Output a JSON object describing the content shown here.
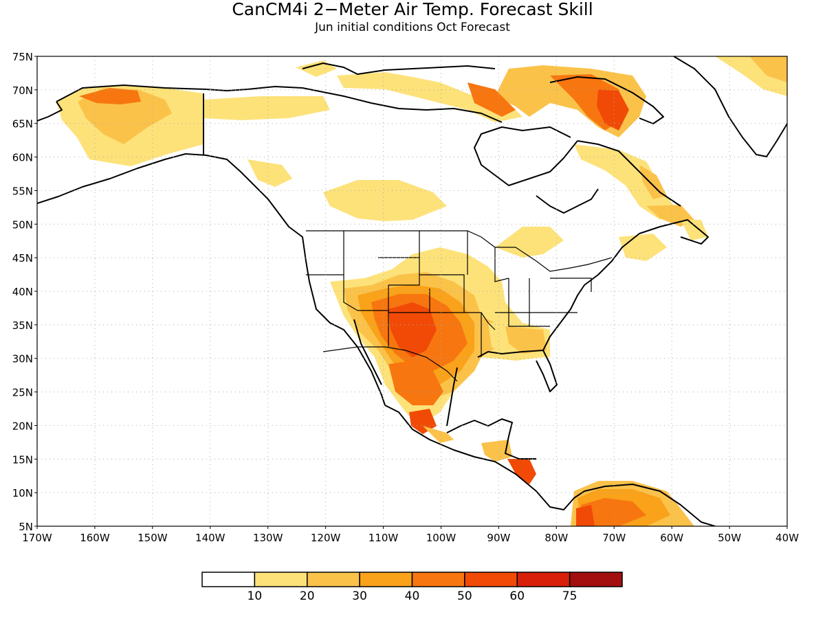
{
  "title": "CanCM4i 2−Meter Air Temp. Forecast Skill",
  "subtitle": "Jun initial conditions  Oct Forecast",
  "map": {
    "projection": "lat-lon",
    "lon_range": [
      -170,
      -40
    ],
    "lat_range": [
      5,
      75
    ],
    "grid": "dotted",
    "lat_labels": [
      "5N",
      "10N",
      "15N",
      "20N",
      "25N",
      "30N",
      "35N",
      "40N",
      "45N",
      "50N",
      "55N",
      "60N",
      "65N",
      "70N",
      "75N"
    ],
    "lon_labels": [
      "170W",
      "160W",
      "150W",
      "140W",
      "130W",
      "120W",
      "110W",
      "100W",
      "90W",
      "80W",
      "70W",
      "60W",
      "50W",
      "40W"
    ]
  },
  "colorbar": {
    "labels": [
      "10",
      "20",
      "30",
      "40",
      "50",
      "60",
      "75"
    ],
    "colors": [
      "#ffffff",
      "#fde27a",
      "#fbc24a",
      "#f9a21a",
      "#f77610",
      "#f14a07",
      "#d71f0a",
      "#a30f0f"
    ]
  }
}
